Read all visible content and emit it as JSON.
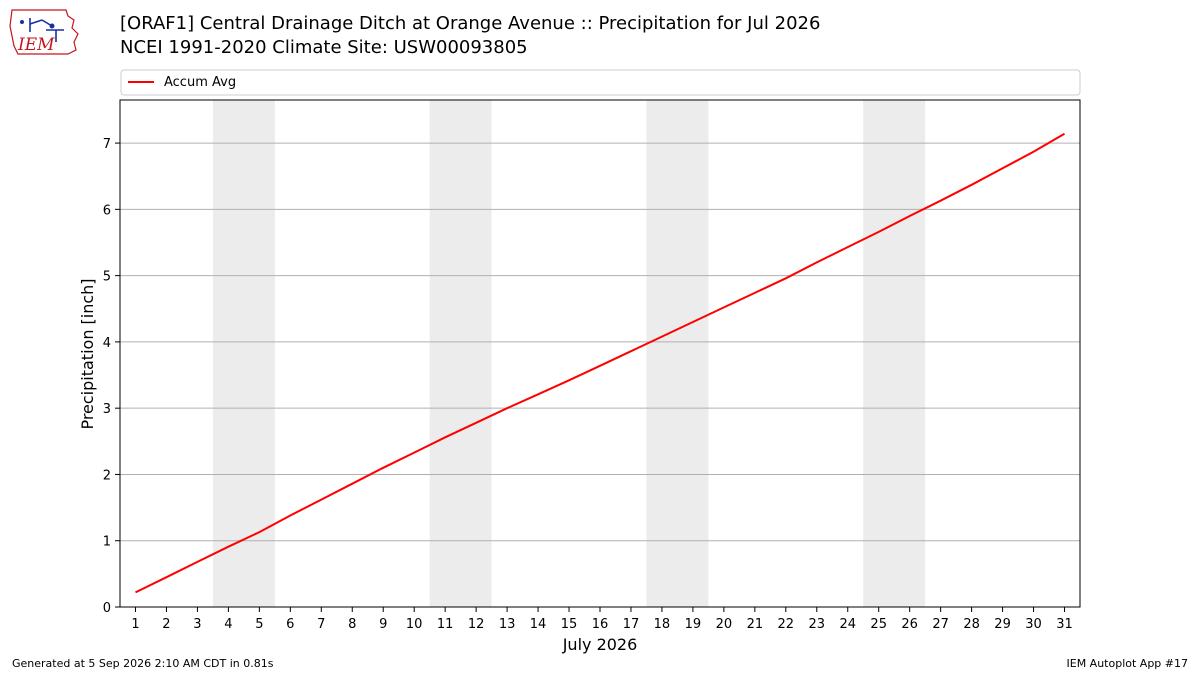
{
  "header": {
    "title_line1": "[ORAF1] Central Drainage Ditch at Orange Avenue :: Precipitation for Jul 2026",
    "title_line2": "NCEI 1991-2020 Climate Site: USW00093805",
    "logo_text": "IEM"
  },
  "footer": {
    "generated": "Generated at 5 Sep 2026 2:10 AM CDT in 0.81s",
    "app": "IEM Autoplot App #17"
  },
  "colors": {
    "series_line": "#ff0000",
    "weekend_shade": "#ececec",
    "grid": "#b0b0b0",
    "logo": "#c8141e"
  },
  "chart_data": {
    "type": "line",
    "title": "[ORAF1] Central Drainage Ditch at Orange Avenue :: Precipitation for Jul 2026",
    "xlabel": "July 2026",
    "ylabel": "Precipitation [inch]",
    "x": [
      1,
      2,
      3,
      4,
      5,
      6,
      7,
      8,
      9,
      10,
      11,
      12,
      13,
      14,
      15,
      16,
      17,
      18,
      19,
      20,
      21,
      22,
      23,
      24,
      25,
      26,
      27,
      28,
      29,
      30,
      31
    ],
    "xlim": [
      0.5,
      31.5
    ],
    "ylim": [
      0,
      7.65
    ],
    "yticks": [
      0,
      1,
      2,
      3,
      4,
      5,
      6,
      7
    ],
    "grid": "horizontal",
    "legend_position": "top",
    "weekend_bands": [
      [
        3.5,
        5.5
      ],
      [
        10.5,
        12.5
      ],
      [
        17.5,
        19.5
      ],
      [
        24.5,
        26.5
      ]
    ],
    "series": [
      {
        "name": "Accum Avg",
        "values": [
          0.22,
          0.45,
          0.68,
          0.91,
          1.13,
          1.38,
          1.62,
          1.86,
          2.1,
          2.33,
          2.56,
          2.78,
          3.0,
          3.21,
          3.42,
          3.64,
          3.86,
          4.08,
          4.3,
          4.52,
          4.74,
          4.96,
          5.2,
          5.43,
          5.66,
          5.9,
          6.13,
          6.37,
          6.62,
          6.87,
          7.14
        ]
      }
    ]
  }
}
